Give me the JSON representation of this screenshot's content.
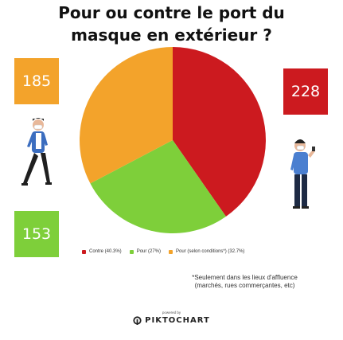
{
  "title": {
    "line1": "Pour ou contre le port du",
    "line2": "masque en extérieur ?"
  },
  "counts": {
    "orange": "185",
    "red": "228",
    "green": "153"
  },
  "note": {
    "line1": "*Seulement dans les lieux d'affluence",
    "line2": "(marchés, rues commerçantes, etc)"
  },
  "footer": {
    "powered_by": "powered by",
    "brand": "PIKTOCHART"
  },
  "colors": {
    "red": "#cc1a1f",
    "green": "#7ecf3a",
    "orange": "#f3a32b"
  },
  "icons": [
    "person-mask-walking-icon",
    "person-mask-phone-icon",
    "piktochart-logo-icon"
  ],
  "chart_data": {
    "type": "pie",
    "title": "Pour ou contre le port du masque en extérieur ?",
    "slices": [
      {
        "label": "Contre (40.3%)",
        "value": 40.3,
        "color": "#cc1a1f"
      },
      {
        "label": "Pour (27%)",
        "value": 27.0,
        "color": "#7ecf3a"
      },
      {
        "label": "Pour (selon conditions*) (32.7%)",
        "value": 32.7,
        "color": "#f3a32b"
      }
    ],
    "legend_placement": "bottom"
  }
}
